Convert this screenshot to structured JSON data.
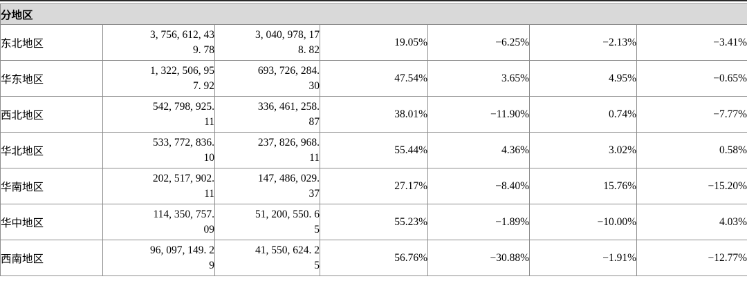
{
  "table": {
    "section_header": "分地区",
    "rows": [
      {
        "region": "东北地区",
        "col1": "3, 756, 612, 43\n9. 78",
        "col2": "3, 040, 978, 17\n8. 82",
        "pct1": "19.05%",
        "pct2": "−6.25%",
        "pct3": "−2.13%",
        "pct4": "−3.41%"
      },
      {
        "region": "华东地区",
        "col1": "1, 322, 506, 95\n7. 92",
        "col2": "693, 726, 284.\n30",
        "pct1": "47.54%",
        "pct2": "3.65%",
        "pct3": "4.95%",
        "pct4": "−0.65%"
      },
      {
        "region": "西北地区",
        "col1": "542, 798, 925.\n11",
        "col2": "336, 461, 258.\n87",
        "pct1": "38.01%",
        "pct2": "−11.90%",
        "pct3": "0.74%",
        "pct4": "−7.77%"
      },
      {
        "region": "华北地区",
        "col1": "533, 772, 836.\n10",
        "col2": "237, 826, 968.\n11",
        "pct1": "55.44%",
        "pct2": "4.36%",
        "pct3": "3.02%",
        "pct4": "0.58%"
      },
      {
        "region": "华南地区",
        "col1": "202, 517, 902.\n11",
        "col2": "147, 486, 029.\n37",
        "pct1": "27.17%",
        "pct2": "−8.40%",
        "pct3": "15.76%",
        "pct4": "−15.20%"
      },
      {
        "region": "华中地区",
        "col1": "114, 350, 757.\n09",
        "col2": "51, 200, 550. 6\n5",
        "pct1": "55.23%",
        "pct2": "−1.89%",
        "pct3": "−10.00%",
        "pct4": "4.03%"
      },
      {
        "region": "西南地区",
        "col1": "96, 097, 149. 2\n9",
        "col2": "41, 550, 624. 2\n5",
        "pct1": "56.76%",
        "pct2": "−30.88%",
        "pct3": "−1.91%",
        "pct4": "−12.77%"
      }
    ]
  }
}
